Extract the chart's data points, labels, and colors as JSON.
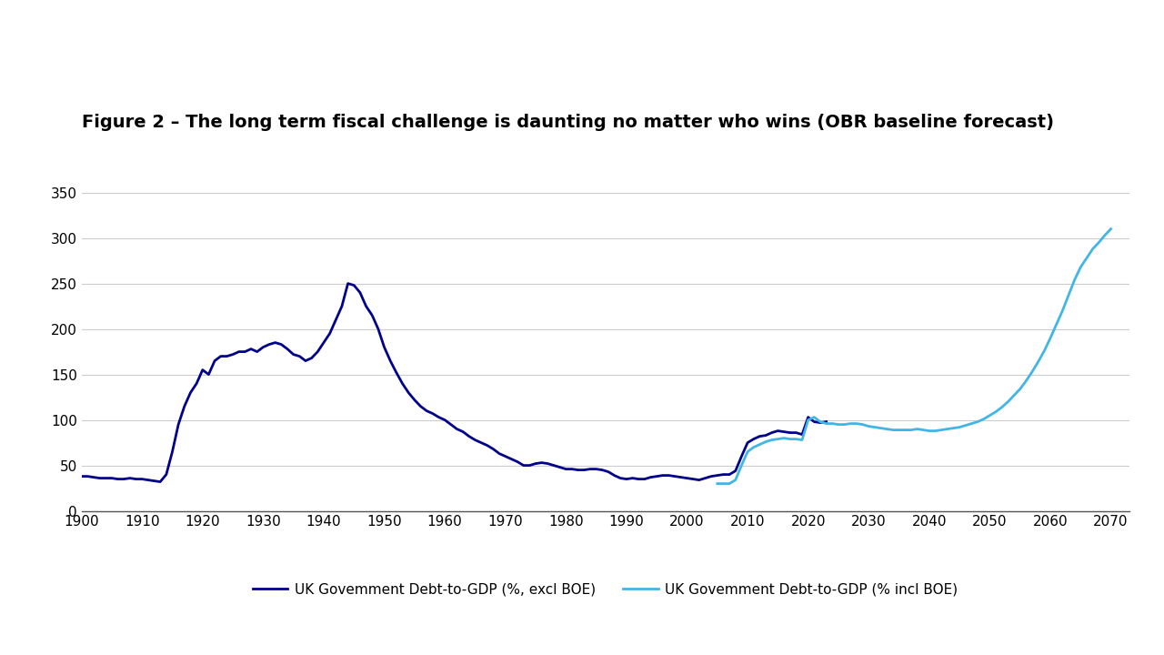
{
  "title": "Figure 2 – The long term fiscal challenge is daunting no matter who wins (OBR baseline forecast)",
  "title_fontsize": 14,
  "background_color": "#ffffff",
  "line1_color": "#00008B",
  "line2_color": "#41B6E6",
  "line1_label": "UK Govemment Debt-to-GDP (%, excl BOE)",
  "line2_label": "UK Govemment Debt-to-GDP (% incl BOE)",
  "xlim": [
    1900,
    2073
  ],
  "ylim": [
    0,
    360
  ],
  "yticks": [
    0,
    50,
    100,
    150,
    200,
    250,
    300,
    350
  ],
  "xticks": [
    1900,
    1910,
    1920,
    1930,
    1940,
    1950,
    1960,
    1970,
    1980,
    1990,
    2000,
    2010,
    2020,
    2030,
    2040,
    2050,
    2060,
    2070
  ],
  "line1_x": [
    1900,
    1901,
    1902,
    1903,
    1904,
    1905,
    1906,
    1907,
    1908,
    1909,
    1910,
    1911,
    1912,
    1913,
    1914,
    1915,
    1916,
    1917,
    1918,
    1919,
    1920,
    1921,
    1922,
    1923,
    1924,
    1925,
    1926,
    1927,
    1928,
    1929,
    1930,
    1931,
    1932,
    1933,
    1934,
    1935,
    1936,
    1937,
    1938,
    1939,
    1940,
    1941,
    1942,
    1943,
    1944,
    1945,
    1946,
    1947,
    1948,
    1949,
    1950,
    1951,
    1952,
    1953,
    1954,
    1955,
    1956,
    1957,
    1958,
    1959,
    1960,
    1961,
    1962,
    1963,
    1964,
    1965,
    1966,
    1967,
    1968,
    1969,
    1970,
    1971,
    1972,
    1973,
    1974,
    1975,
    1976,
    1977,
    1978,
    1979,
    1980,
    1981,
    1982,
    1983,
    1984,
    1985,
    1986,
    1987,
    1988,
    1989,
    1990,
    1991,
    1992,
    1993,
    1994,
    1995,
    1996,
    1997,
    1998,
    1999,
    2000,
    2001,
    2002,
    2003,
    2004,
    2005,
    2006,
    2007,
    2008,
    2009,
    2010,
    2011,
    2012,
    2013,
    2014,
    2015,
    2016,
    2017,
    2018,
    2019,
    2020,
    2021,
    2022,
    2023
  ],
  "line1_y": [
    38,
    38,
    37,
    36,
    36,
    36,
    35,
    35,
    36,
    35,
    35,
    34,
    33,
    32,
    40,
    65,
    95,
    115,
    130,
    140,
    155,
    150,
    165,
    170,
    170,
    172,
    175,
    175,
    178,
    175,
    180,
    183,
    185,
    183,
    178,
    172,
    170,
    165,
    168,
    175,
    185,
    195,
    210,
    225,
    250,
    248,
    240,
    225,
    215,
    200,
    180,
    165,
    152,
    140,
    130,
    122,
    115,
    110,
    107,
    103,
    100,
    95,
    90,
    87,
    82,
    78,
    75,
    72,
    68,
    63,
    60,
    57,
    54,
    50,
    50,
    52,
    53,
    52,
    50,
    48,
    46,
    46,
    45,
    45,
    46,
    46,
    45,
    43,
    39,
    36,
    35,
    36,
    35,
    35,
    37,
    38,
    39,
    39,
    38,
    37,
    36,
    35,
    34,
    36,
    38,
    39,
    40,
    40,
    44,
    60,
    75,
    79,
    82,
    83,
    86,
    88,
    87,
    86,
    86,
    84,
    103,
    98,
    97,
    98
  ],
  "line2_x": [
    2005,
    2006,
    2007,
    2008,
    2009,
    2010,
    2011,
    2012,
    2013,
    2014,
    2015,
    2016,
    2017,
    2018,
    2019,
    2020,
    2021,
    2022,
    2023,
    2024,
    2025,
    2026,
    2027,
    2028,
    2029,
    2030,
    2031,
    2032,
    2033,
    2034,
    2035,
    2036,
    2037,
    2038,
    2039,
    2040,
    2041,
    2042,
    2043,
    2044,
    2045,
    2046,
    2047,
    2048,
    2049,
    2050,
    2051,
    2052,
    2053,
    2054,
    2055,
    2056,
    2057,
    2058,
    2059,
    2060,
    2061,
    2062,
    2063,
    2064,
    2065,
    2066,
    2067,
    2068,
    2069,
    2070
  ],
  "line2_y": [
    30,
    30,
    30,
    34,
    50,
    65,
    70,
    73,
    76,
    78,
    79,
    80,
    79,
    79,
    78,
    100,
    103,
    98,
    96,
    96,
    95,
    95,
    96,
    96,
    95,
    93,
    92,
    91,
    90,
    89,
    89,
    89,
    89,
    90,
    89,
    88,
    88,
    89,
    90,
    91,
    92,
    94,
    96,
    98,
    101,
    105,
    109,
    114,
    120,
    127,
    134,
    143,
    153,
    164,
    176,
    190,
    205,
    220,
    237,
    254,
    268,
    278,
    288,
    295,
    303,
    310
  ]
}
